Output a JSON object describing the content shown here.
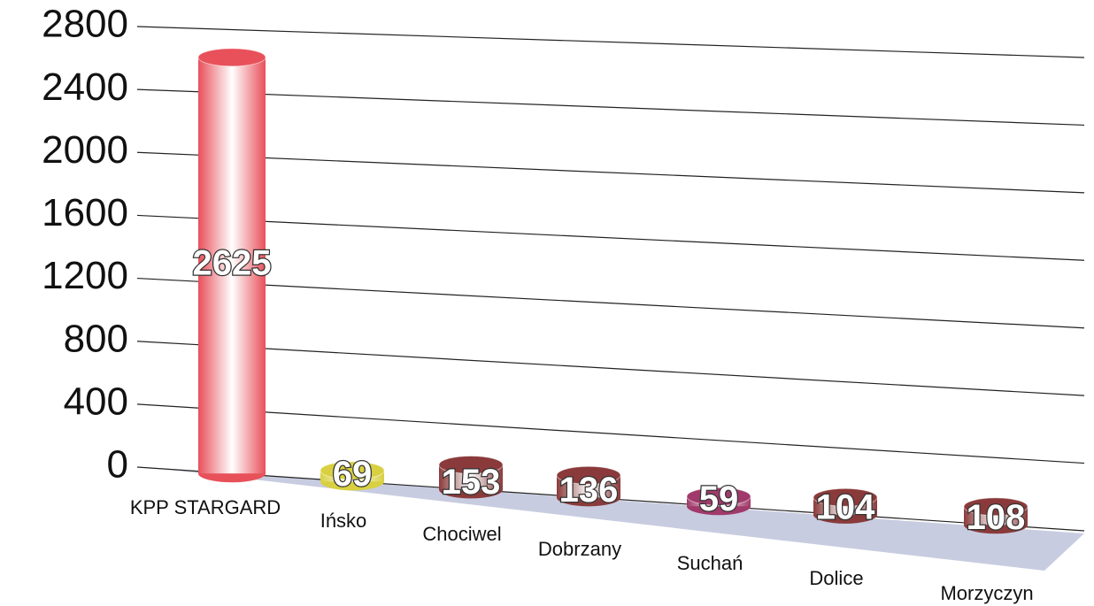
{
  "chart_data": {
    "type": "bar",
    "categories": [
      "KPP STARGARD",
      "Ińsko",
      "Chociwel",
      "Dobrzany",
      "Suchań",
      "Dolice",
      "Morzyczyn"
    ],
    "values": [
      2625,
      69,
      153,
      136,
      59,
      104,
      108
    ],
    "colors": [
      "#e8505a",
      "#d8d040",
      "#8a3a3a",
      "#8a3a3a",
      "#a03a6a",
      "#8a3a3a",
      "#8a3a3a"
    ],
    "ylim": [
      0,
      2800
    ],
    "yticks": [
      0,
      400,
      800,
      1200,
      1600,
      2000,
      2400,
      2800
    ],
    "grid": true
  }
}
